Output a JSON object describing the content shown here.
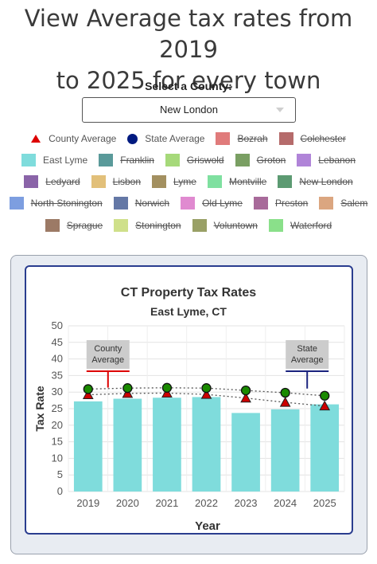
{
  "page": {
    "title_line1": "View Average tax rates from 2019",
    "title_line2": "to 2025 for every town"
  },
  "selector": {
    "label": "Select a County:",
    "value": "New London"
  },
  "legend": {
    "rows": [
      [
        {
          "name": "County Average",
          "kind": "triangle",
          "color": "#dd0000",
          "active": true
        },
        {
          "name": "State Average",
          "kind": "dot",
          "color": "#001a80",
          "active": true
        },
        {
          "name": "Bozrah",
          "kind": "box",
          "color": "#e07b7b",
          "active": false
        },
        {
          "name": "Colchester",
          "kind": "box",
          "color": "#b56b6b",
          "active": false
        }
      ],
      [
        {
          "name": "East Lyme",
          "kind": "box",
          "color": "#7fdcdc",
          "active": true
        },
        {
          "name": "Franklin",
          "kind": "box",
          "color": "#5a9a9a",
          "active": false
        },
        {
          "name": "Griswold",
          "kind": "box",
          "color": "#a6d97a",
          "active": false
        },
        {
          "name": "Groton",
          "kind": "box",
          "color": "#7a9f63",
          "active": false
        },
        {
          "name": "Lebanon",
          "kind": "box",
          "color": "#b084d8",
          "active": false
        }
      ],
      [
        {
          "name": "Ledyard",
          "kind": "box",
          "color": "#8a64a8",
          "active": false
        },
        {
          "name": "Lisbon",
          "kind": "box",
          "color": "#e2c07a",
          "active": false
        },
        {
          "name": "Lyme",
          "kind": "box",
          "color": "#a39060",
          "active": false
        },
        {
          "name": "Montville",
          "kind": "box",
          "color": "#7fe0a0",
          "active": false
        },
        {
          "name": "New London",
          "kind": "box",
          "color": "#5c9a72",
          "active": false
        }
      ],
      [
        {
          "name": "North Stonington",
          "kind": "box",
          "color": "#7d9ee0",
          "active": false
        },
        {
          "name": "Norwich",
          "kind": "box",
          "color": "#6478a6",
          "active": false
        },
        {
          "name": "Old Lyme",
          "kind": "box",
          "color": "#e08ad0",
          "active": false
        },
        {
          "name": "Preston",
          "kind": "box",
          "color": "#a86a9a",
          "active": false
        },
        {
          "name": "Salem",
          "kind": "box",
          "color": "#dba680",
          "active": false
        }
      ],
      [
        {
          "name": "Sprague",
          "kind": "box",
          "color": "#9c7a66",
          "active": false
        },
        {
          "name": "Stonington",
          "kind": "box",
          "color": "#cfe08a",
          "active": false
        },
        {
          "name": "Voluntown",
          "kind": "box",
          "color": "#99a066",
          "active": false
        },
        {
          "name": "Waterford",
          "kind": "box",
          "color": "#8ae08a",
          "active": false
        }
      ]
    ]
  },
  "chart_data": {
    "type": "bar",
    "title": "CT Property Tax Rates",
    "subtitle": "East Lyme, CT",
    "xlabel": "Year",
    "ylabel": "Tax Rate",
    "ylim": [
      0,
      50
    ],
    "yticks": [
      0,
      5,
      10,
      15,
      20,
      25,
      30,
      35,
      40,
      45,
      50
    ],
    "grid": true,
    "categories": [
      "2019",
      "2020",
      "2021",
      "2022",
      "2023",
      "2024",
      "2025"
    ],
    "series": [
      {
        "name": "East Lyme",
        "type": "bar",
        "color": "#7fdcdc",
        "values": [
          27.2,
          28.0,
          28.3,
          28.5,
          23.7,
          24.8,
          26.3
        ]
      },
      {
        "name": "State Average",
        "type": "line-markers",
        "color": "#1a8a00",
        "marker": "circle",
        "values": [
          30.9,
          31.2,
          31.3,
          31.2,
          30.5,
          29.8,
          28.9
        ]
      },
      {
        "name": "County Average",
        "type": "line-markers",
        "color": "#cc0000",
        "marker": "triangle",
        "values": [
          29.2,
          29.6,
          29.7,
          29.3,
          28.2,
          26.9,
          25.8
        ]
      }
    ],
    "annotations": [
      {
        "text_line1": "County",
        "text_line2": "Average",
        "category": "2019",
        "line_color": "#dd0000"
      },
      {
        "text_line1": "State",
        "text_line2": "Average",
        "category": "2025",
        "line_color": "#1a237e"
      }
    ]
  }
}
